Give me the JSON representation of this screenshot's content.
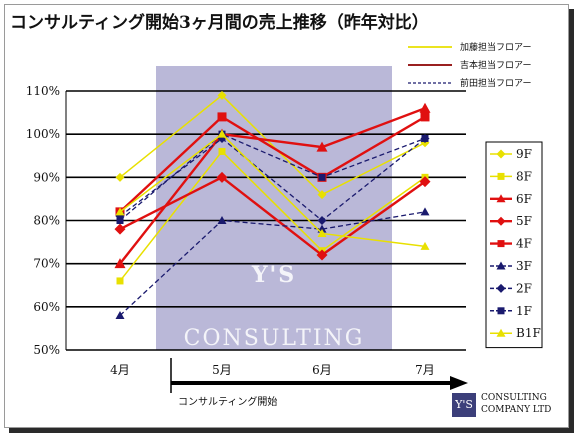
{
  "title": "コンサルティング開始3ヶ月間の売上推移（昨年対比）",
  "top_legend": [
    {
      "label": "加藤担当フロアー",
      "color": "#e8e000",
      "dash": false
    },
    {
      "label": "吉本担当フロアー",
      "color": "#8b0000",
      "dash": false
    },
    {
      "label": "前田担当フロアー",
      "color": "#1a1a6e",
      "dash": true
    }
  ],
  "arrow_label": "コンサルティング開始",
  "logo": {
    "mark": "Y'S",
    "line1": "CONSULTING",
    "line2": "COMPANY LTD"
  },
  "watermark": {
    "mark": "Y'S",
    "line1": "CONSULTING",
    "line2": "COMPANY LTD."
  },
  "chart_data": {
    "type": "line",
    "title": "コンサルティング開始3ヶ月間の売上推移（昨年対比）",
    "categories": [
      "4月",
      "5月",
      "6月",
      "7月"
    ],
    "ylim": [
      50,
      110
    ],
    "yticks": [
      "50%",
      "60%",
      "70%",
      "80%",
      "90%",
      "100%",
      "110%"
    ],
    "grid": true,
    "legend_position": "right",
    "series": [
      {
        "name": "9F",
        "values": [
          90,
          109,
          86,
          98
        ],
        "color": "#e8e000",
        "marker": "diamond",
        "dash": false
      },
      {
        "name": "8F",
        "values": [
          66,
          96,
          73,
          90
        ],
        "color": "#e8e000",
        "marker": "square",
        "dash": false
      },
      {
        "name": "6F",
        "values": [
          70,
          100,
          97,
          106
        ],
        "color": "#e01010",
        "marker": "triangle",
        "dash": false
      },
      {
        "name": "5F",
        "values": [
          78,
          90,
          72,
          89
        ],
        "color": "#e01010",
        "marker": "diamond",
        "dash": false
      },
      {
        "name": "4F",
        "values": [
          82,
          104,
          90,
          104
        ],
        "color": "#e01010",
        "marker": "square",
        "dash": false
      },
      {
        "name": "3F",
        "values": [
          58,
          80,
          78,
          82
        ],
        "color": "#1a1a6e",
        "marker": "triangle",
        "dash": true
      },
      {
        "name": "2F",
        "values": [
          81,
          99,
          80,
          99
        ],
        "color": "#1a1a6e",
        "marker": "diamond",
        "dash": true
      },
      {
        "name": "1F",
        "values": [
          80,
          100,
          90,
          99
        ],
        "color": "#1a1a6e",
        "marker": "square",
        "dash": true
      },
      {
        "name": "B1F",
        "values": [
          82,
          100,
          77,
          74
        ],
        "color": "#e8e000",
        "marker": "triangle",
        "dash": false
      }
    ]
  }
}
